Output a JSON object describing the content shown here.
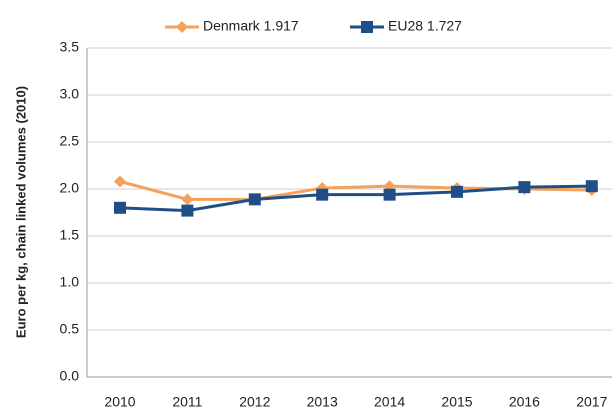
{
  "chart_data": {
    "type": "line",
    "y_label": "Euro per kg, chain linked volumes (2010)",
    "categories": [
      "2010",
      "2011",
      "2012",
      "2013",
      "2014",
      "2015",
      "2016",
      "2017"
    ],
    "series": [
      {
        "name": "Denmark 1.917",
        "color": "#f4a259",
        "marker": "diamond",
        "values": [
          2.08,
          1.89,
          1.89,
          2.01,
          2.03,
          2.01,
          2.0,
          1.99
        ]
      },
      {
        "name": "EU28 1.727",
        "color": "#1f4e89",
        "marker": "square",
        "values": [
          1.8,
          1.77,
          1.89,
          1.94,
          1.94,
          1.97,
          2.02,
          2.03
        ]
      }
    ],
    "ylim": [
      0,
      3.5
    ],
    "yticks": [
      {
        "value": 0,
        "label": "0.0"
      },
      0.5,
      {
        "value": 1,
        "label": "1.0"
      },
      1.5,
      {
        "value": 2,
        "label": "2.0"
      },
      2.5,
      {
        "value": 3,
        "label": "3.0"
      },
      3.5
    ],
    "grid": true,
    "legend": "top"
  }
}
